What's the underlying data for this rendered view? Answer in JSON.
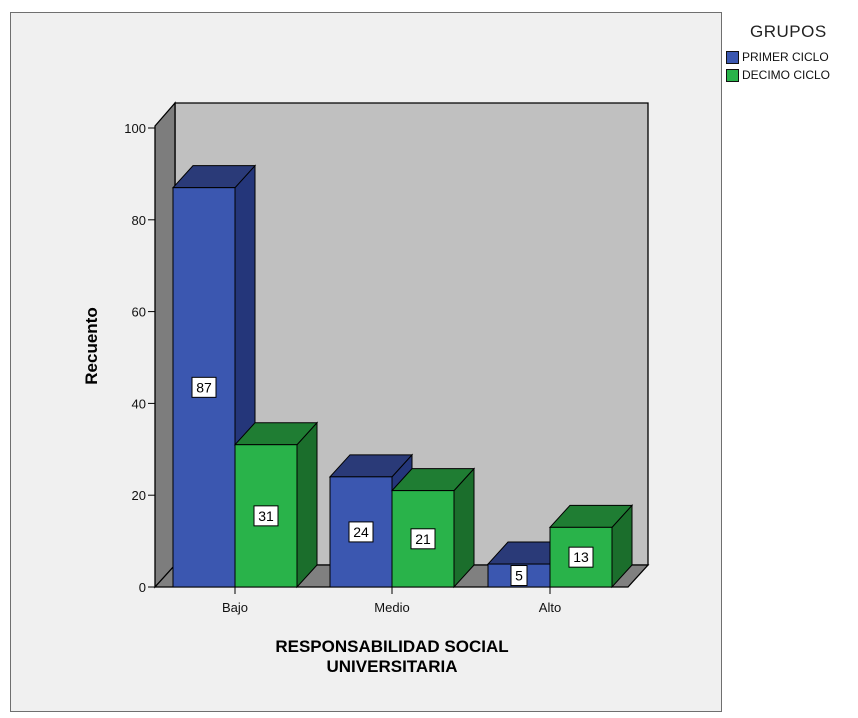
{
  "chart_data": {
    "type": "bar",
    "xlabel": "RESPONSABILIDAD SOCIAL UNIVERSITARIA",
    "xlabel_lines": [
      "RESPONSABILIDAD SOCIAL",
      "UNIVERSITARIA"
    ],
    "ylabel": "Recuento",
    "categories": [
      "Bajo",
      "Medio",
      "Alto"
    ],
    "series": [
      {
        "name": "PRIMER CICLO",
        "values": [
          87,
          24,
          5
        ],
        "color": "#3b57b0",
        "side_color": "#24367a",
        "top_color": "#2a3a78"
      },
      {
        "name": "DECIMO CICLO",
        "values": [
          31,
          21,
          13
        ],
        "color": "#29b34a",
        "side_color": "#1b6e2c",
        "top_color": "#1f7d33"
      }
    ],
    "ylim": [
      0,
      100
    ],
    "yticks": [
      0,
      20,
      40,
      60,
      80,
      100
    ],
    "legend_title": "GRUPOS",
    "legend_position": "top-right",
    "grid": false,
    "style": "3d",
    "wall_color": "#c0c0c0",
    "floor_color": "#808080"
  }
}
